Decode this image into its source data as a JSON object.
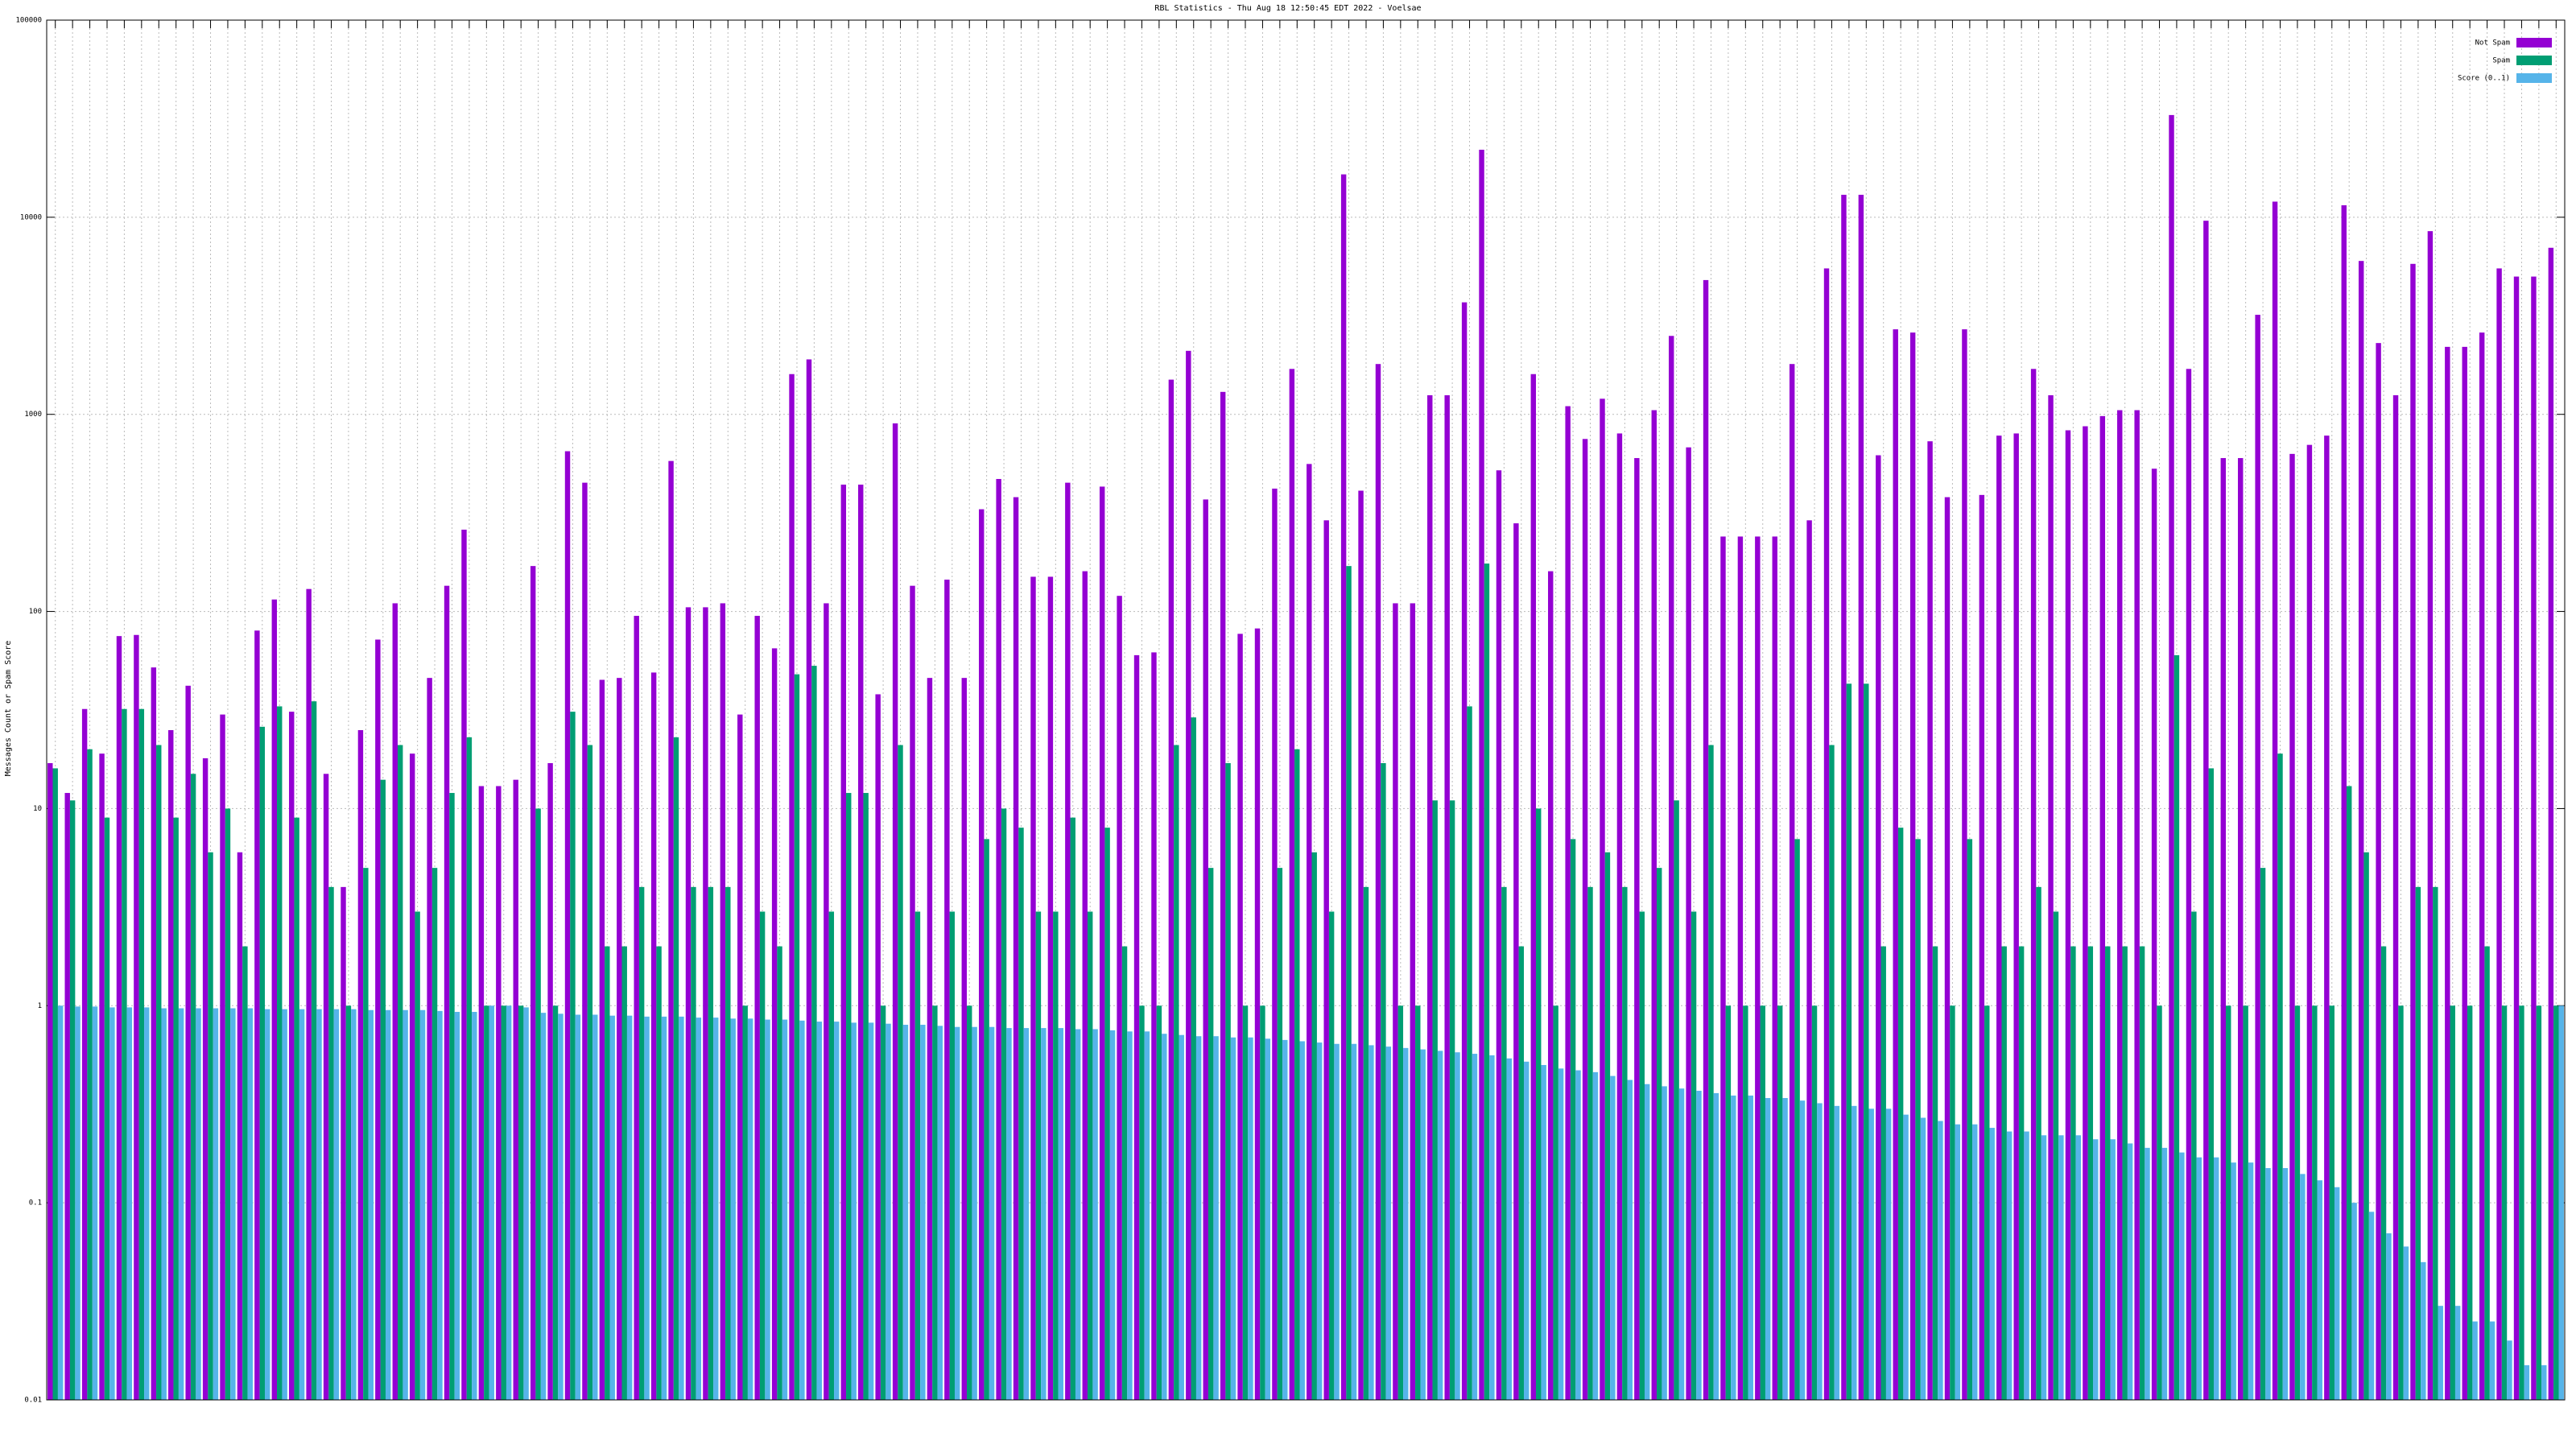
{
  "chart_data": {
    "type": "bar",
    "title": "RBL Statistics - Thu Aug 18 12:50:45 EDT 2022 - Voelsae",
    "y_label": "Messages Count or Spam Score",
    "log_y": true,
    "grid": true,
    "legend": "upper right",
    "ylim": [
      0.01,
      100000
    ],
    "yticks": [
      0.01,
      0.1,
      1,
      10,
      100,
      1000,
      10000,
      100000
    ],
    "categories": [
      null,
      null,
      null,
      null,
      null,
      null,
      null,
      null,
      null,
      null,
      null,
      null,
      null,
      null,
      null,
      null,
      null,
      null,
      null,
      null,
      null,
      null,
      null,
      null,
      null,
      null,
      null,
      null,
      null,
      null,
      null,
      null,
      null,
      null,
      null,
      null,
      null,
      null,
      null,
      null,
      null,
      null,
      null,
      null,
      null,
      null,
      null,
      null,
      null,
      null,
      null,
      null,
      null,
      null,
      null,
      null,
      null,
      null,
      null,
      null,
      null,
      null,
      null,
      null,
      null,
      null,
      null,
      null,
      null,
      null,
      null,
      null,
      null,
      null,
      null,
      null,
      null,
      null,
      null,
      null,
      null,
      null,
      null,
      null,
      null,
      null,
      null,
      null,
      null,
      null,
      null,
      null,
      null,
      null,
      null,
      null,
      null,
      null,
      null,
      null,
      null,
      null,
      null,
      null,
      null,
      null,
      null,
      null,
      null,
      null,
      null,
      null,
      null,
      null,
      null,
      null,
      null,
      null,
      null,
      null,
      null,
      null,
      null,
      null,
      null,
      null,
      null,
      null,
      null,
      null,
      null,
      null,
      null,
      null,
      null,
      null,
      null,
      null,
      null,
      null,
      null,
      null,
      null,
      null,
      null,
      null
    ],
    "series": [
      {
        "name": "Not Spam",
        "color": "#9400d3",
        "values": [
          17,
          12,
          32,
          19,
          75,
          76,
          52,
          25,
          42,
          18,
          30,
          6,
          80,
          115,
          31,
          130,
          15,
          4,
          25,
          72,
          110,
          19,
          46,
          135,
          260,
          13,
          13,
          14,
          170,
          17,
          650,
          450,
          45,
          46,
          95,
          49,
          580,
          105,
          105,
          110,
          30,
          95,
          65,
          1600,
          1900,
          110,
          440,
          440,
          38,
          900,
          135,
          46,
          145,
          46,
          330,
          470,
          380,
          150,
          150,
          450,
          160,
          430,
          120,
          60,
          62,
          1500,
          2100,
          370,
          1300,
          77,
          82,
          420,
          1700,
          560,
          290,
          16500,
          410,
          1800,
          110,
          110,
          1250,
          1250,
          3700,
          22000,
          520,
          280,
          1600,
          160,
          1100,
          750,
          1200,
          800,
          600,
          1050,
          2500,
          680,
          4800,
          240,
          240,
          240,
          240,
          1800,
          290,
          5500,
          13000,
          13000,
          620,
          2700,
          2600,
          730,
          380,
          2700,
          390,
          780,
          800,
          1700,
          1250,
          830,
          870,
          980,
          1050,
          1050,
          530,
          33000,
          1700,
          9600,
          600,
          600,
          3200,
          12000,
          630,
          700,
          780,
          11500,
          6000,
          2300,
          1250,
          5800,
          8500,
          2200,
          2200,
          2600,
          5500,
          5000,
          5000,
          7000
        ]
      },
      {
        "name": "Spam",
        "color": "#009e73",
        "values": [
          16,
          11,
          20,
          9,
          32,
          32,
          21,
          9,
          15,
          6,
          10,
          2,
          26,
          33,
          9,
          35,
          4,
          1,
          5,
          14,
          21,
          3,
          5,
          12,
          23,
          1,
          1,
          1,
          10,
          1,
          31,
          21,
          2,
          2,
          4,
          2,
          23,
          4,
          4,
          4,
          1,
          3,
          2,
          48,
          53,
          3,
          12,
          12,
          1,
          21,
          3,
          1,
          3,
          1,
          7,
          10,
          8,
          3,
          3,
          9,
          3,
          8,
          2,
          1,
          1,
          21,
          29,
          5,
          17,
          1,
          1,
          5,
          20,
          6,
          3,
          170,
          4,
          17,
          1,
          1,
          11,
          11,
          33,
          175,
          4,
          2,
          10,
          1,
          7,
          4,
          6,
          4,
          3,
          5,
          11,
          3,
          21,
          1,
          1,
          1,
          1,
          7,
          1,
          21,
          43,
          43,
          2,
          8,
          7,
          2,
          1,
          7,
          1,
          2,
          2,
          4,
          3,
          2,
          2,
          2,
          2,
          2,
          1,
          60,
          3,
          16,
          1,
          1,
          5,
          19,
          1,
          1,
          1,
          13,
          6,
          2,
          1,
          4,
          4,
          1,
          1,
          2,
          1,
          1,
          1,
          1
        ]
      },
      {
        "name": "Score (0..1)",
        "color": "#56b4e9",
        "values": [
          1,
          0.99,
          0.99,
          0.98,
          0.98,
          0.98,
          0.97,
          0.97,
          0.97,
          0.97,
          0.97,
          0.97,
          0.96,
          0.96,
          0.96,
          0.96,
          0.96,
          0.96,
          0.95,
          0.95,
          0.95,
          0.95,
          0.94,
          0.93,
          0.93,
          1,
          1,
          0.98,
          0.92,
          0.91,
          0.9,
          0.9,
          0.89,
          0.89,
          0.88,
          0.88,
          0.88,
          0.87,
          0.87,
          0.86,
          0.86,
          0.85,
          0.85,
          0.84,
          0.83,
          0.83,
          0.82,
          0.82,
          0.81,
          0.8,
          0.8,
          0.79,
          0.78,
          0.78,
          0.78,
          0.77,
          0.77,
          0.77,
          0.77,
          0.76,
          0.76,
          0.75,
          0.74,
          0.74,
          0.72,
          0.71,
          0.7,
          0.7,
          0.69,
          0.69,
          0.68,
          0.67,
          0.66,
          0.65,
          0.64,
          0.64,
          0.63,
          0.62,
          0.61,
          0.6,
          0.59,
          0.58,
          0.57,
          0.56,
          0.54,
          0.52,
          0.5,
          0.48,
          0.47,
          0.46,
          0.44,
          0.42,
          0.4,
          0.39,
          0.38,
          0.37,
          0.36,
          0.35,
          0.35,
          0.34,
          0.34,
          0.33,
          0.32,
          0.31,
          0.31,
          0.3,
          0.3,
          0.28,
          0.27,
          0.26,
          0.25,
          0.25,
          0.24,
          0.23,
          0.23,
          0.22,
          0.22,
          0.22,
          0.21,
          0.21,
          0.2,
          0.19,
          0.19,
          0.18,
          0.17,
          0.17,
          0.16,
          0.16,
          0.15,
          0.15,
          0.14,
          0.13,
          0.12,
          0.1,
          0.09,
          0.07,
          0.06,
          0.05,
          0.03,
          0.03,
          0.025,
          0.025,
          0.02,
          0.015,
          0.015,
          1
        ]
      }
    ]
  }
}
